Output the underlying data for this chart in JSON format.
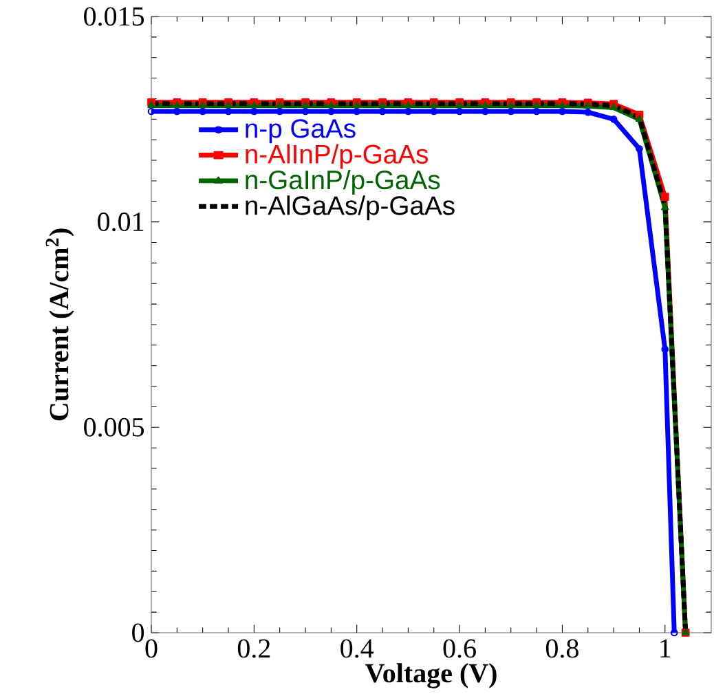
{
  "chart_data": {
    "type": "line",
    "xlabel": "Voltage (V)",
    "ylabel": "Current (A/cm$^{2}$)",
    "xlim": [
      0,
      1.09
    ],
    "xticks": [
      0,
      0.2,
      0.4,
      0.6,
      0.8,
      1
    ],
    "ylim": [
      0,
      0.015
    ],
    "yticks": [
      0,
      0.005,
      0.01,
      0.015
    ],
    "legend": "top left",
    "grid": false,
    "series": [
      {
        "name": "n-p GaAs",
        "color": "#0000ff",
        "marker": "circle",
        "line_style": "solid",
        "x": [
          0,
          0.05,
          0.1,
          0.15,
          0.2,
          0.25,
          0.3,
          0.35,
          0.4,
          0.45,
          0.5,
          0.55,
          0.6,
          0.65,
          0.7,
          0.75,
          0.8,
          0.85,
          0.9,
          0.95,
          1.0,
          1.018
        ],
        "values": [
          0.01269,
          0.01269,
          0.01269,
          0.01269,
          0.01269,
          0.01269,
          0.01269,
          0.01269,
          0.01269,
          0.01269,
          0.01269,
          0.01269,
          0.01269,
          0.01269,
          0.01269,
          0.01269,
          0.01269,
          0.01267,
          0.0125,
          0.01178,
          0.0069,
          0
        ]
      },
      {
        "name": "n-AlInP/p-GaAs",
        "color": "#ff0000",
        "marker": "square",
        "line_style": "solid",
        "x": [
          0,
          0.05,
          0.1,
          0.15,
          0.2,
          0.25,
          0.3,
          0.35,
          0.4,
          0.45,
          0.5,
          0.55,
          0.6,
          0.65,
          0.7,
          0.75,
          0.8,
          0.85,
          0.9,
          0.95,
          1.0,
          1.04
        ],
        "values": [
          0.01291,
          0.01291,
          0.01291,
          0.01291,
          0.01291,
          0.01291,
          0.01291,
          0.01291,
          0.01291,
          0.01291,
          0.01291,
          0.01291,
          0.01291,
          0.01291,
          0.01291,
          0.01291,
          0.01291,
          0.0129,
          0.01287,
          0.01261,
          0.01061,
          0
        ]
      },
      {
        "name": "n-GaInP/p-GaAs",
        "color": "#006400",
        "marker": "triangle",
        "line_style": "solid",
        "x": [
          0,
          0.05,
          0.1,
          0.15,
          0.2,
          0.25,
          0.3,
          0.35,
          0.4,
          0.45,
          0.5,
          0.55,
          0.6,
          0.65,
          0.7,
          0.75,
          0.8,
          0.85,
          0.9,
          0.95,
          1.0,
          1.04
        ],
        "values": [
          0.01283,
          0.01283,
          0.01283,
          0.01283,
          0.01283,
          0.01283,
          0.01283,
          0.01283,
          0.01283,
          0.01283,
          0.01283,
          0.01283,
          0.01283,
          0.01283,
          0.01283,
          0.01283,
          0.01283,
          0.01282,
          0.01278,
          0.0125,
          0.01035,
          0
        ]
      },
      {
        "name": "n-AlGaAs/p-GaAs",
        "color": "#000000",
        "marker": "none",
        "line_style": "dashed",
        "x": [
          0,
          0.05,
          0.1,
          0.15,
          0.2,
          0.25,
          0.3,
          0.35,
          0.4,
          0.45,
          0.5,
          0.55,
          0.6,
          0.65,
          0.7,
          0.75,
          0.8,
          0.85,
          0.9,
          0.95,
          1.0,
          1.04
        ],
        "values": [
          0.01288,
          0.01288,
          0.01288,
          0.01288,
          0.01288,
          0.01288,
          0.01288,
          0.01288,
          0.01288,
          0.01288,
          0.01288,
          0.01288,
          0.01288,
          0.01288,
          0.01288,
          0.01288,
          0.01288,
          0.01287,
          0.01283,
          0.01255,
          0.0104,
          0
        ]
      }
    ]
  }
}
